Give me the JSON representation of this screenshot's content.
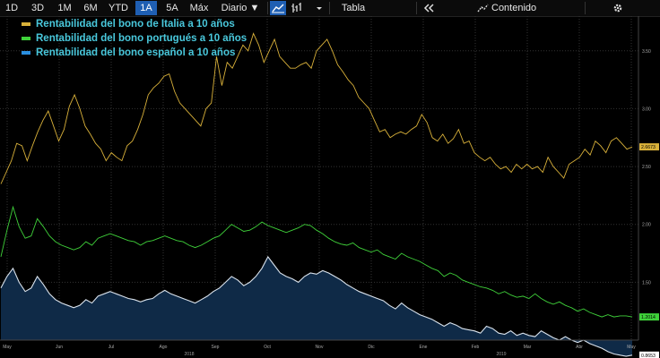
{
  "toolbar": {
    "ranges": [
      "1D",
      "3D",
      "1M",
      "6M",
      "YTD",
      "1A",
      "5A",
      "Máx"
    ],
    "active_range": "1A",
    "interval_label": "Diario ▼",
    "table_label": "Tabla",
    "contents_label": "Contenido",
    "icons": [
      "line-chart-icon",
      "bar-chart-icon",
      "settings-icon"
    ]
  },
  "colors": {
    "italy": "#d9b13a",
    "portugal": "#3fd13a",
    "spain_line": "#d9e2ec",
    "spain_fill": "#0f2a47",
    "legend_text": "#49c8dc"
  },
  "chart_data": {
    "type": "line",
    "ylim": [
      1.0,
      3.8
    ],
    "yticks": [
      "1.50",
      "2.00",
      "2.50",
      "3.00",
      "3.50"
    ],
    "ytick_values": [
      1.5,
      2.0,
      2.5,
      3.0,
      3.5
    ],
    "x_month_labels": [
      "May",
      "Jun",
      "Jul",
      "Ago",
      "Sep",
      "Oct",
      "Nov",
      "Dic",
      "Ene",
      "Feb",
      "Mar",
      "Abr",
      "May"
    ],
    "x_year_labels": [
      "2018",
      "2019"
    ],
    "last_value_labels": [
      "2.6673",
      "1.2014",
      "0.8653"
    ],
    "grid": true,
    "legend_position": "top-left",
    "series": [
      {
        "name": "Rentabilidad del bono de Italia a 10 años",
        "color": "#d9b13a",
        "values": [
          2.35,
          2.45,
          2.55,
          2.7,
          2.68,
          2.55,
          2.68,
          2.8,
          2.9,
          2.98,
          2.85,
          2.72,
          2.82,
          3.02,
          3.12,
          3.0,
          2.85,
          2.78,
          2.7,
          2.65,
          2.55,
          2.62,
          2.58,
          2.55,
          2.68,
          2.72,
          2.82,
          2.95,
          3.12,
          3.18,
          3.22,
          3.28,
          3.3,
          3.15,
          3.05,
          3.0,
          2.95,
          2.9,
          2.85,
          3.0,
          3.05,
          3.45,
          3.2,
          3.4,
          3.35,
          3.45,
          3.55,
          3.5,
          3.65,
          3.55,
          3.4,
          3.5,
          3.6,
          3.45,
          3.4,
          3.35,
          3.35,
          3.38,
          3.4,
          3.35,
          3.5,
          3.55,
          3.6,
          3.5,
          3.38,
          3.32,
          3.25,
          3.2,
          3.1,
          3.05,
          3.0,
          2.9,
          2.8,
          2.82,
          2.75,
          2.78,
          2.8,
          2.78,
          2.82,
          2.85,
          2.95,
          2.88,
          2.75,
          2.72,
          2.78,
          2.7,
          2.74,
          2.82,
          2.7,
          2.72,
          2.62,
          2.58,
          2.55,
          2.58,
          2.52,
          2.48,
          2.5,
          2.45,
          2.52,
          2.48,
          2.52,
          2.48,
          2.5,
          2.45,
          2.58,
          2.5,
          2.45,
          2.4,
          2.52,
          2.55,
          2.58,
          2.65,
          2.6,
          2.72,
          2.68,
          2.62,
          2.72,
          2.75,
          2.7,
          2.65,
          2.67
        ]
      },
      {
        "name": "Rentabilidad del bono portugués a 10 años",
        "color": "#3fd13a",
        "values": [
          1.72,
          1.95,
          2.15,
          1.98,
          1.88,
          1.9,
          2.05,
          1.98,
          1.9,
          1.85,
          1.82,
          1.8,
          1.78,
          1.8,
          1.85,
          1.82,
          1.88,
          1.9,
          1.92,
          1.9,
          1.88,
          1.86,
          1.85,
          1.82,
          1.85,
          1.86,
          1.88,
          1.9,
          1.88,
          1.86,
          1.85,
          1.82,
          1.8,
          1.82,
          1.85,
          1.88,
          1.9,
          1.95,
          2.0,
          1.97,
          1.94,
          1.95,
          1.98,
          2.02,
          1.99,
          1.97,
          1.95,
          1.93,
          1.95,
          1.97,
          2.0,
          1.99,
          1.95,
          1.92,
          1.88,
          1.85,
          1.83,
          1.82,
          1.84,
          1.8,
          1.78,
          1.76,
          1.78,
          1.74,
          1.72,
          1.7,
          1.75,
          1.72,
          1.7,
          1.68,
          1.65,
          1.62,
          1.6,
          1.55,
          1.58,
          1.56,
          1.52,
          1.5,
          1.48,
          1.46,
          1.45,
          1.43,
          1.4,
          1.42,
          1.39,
          1.37,
          1.38,
          1.36,
          1.4,
          1.36,
          1.33,
          1.31,
          1.33,
          1.3,
          1.28,
          1.25,
          1.27,
          1.24,
          1.22,
          1.2,
          1.22,
          1.2,
          1.21,
          1.21,
          1.2
        ]
      },
      {
        "name": "Rentabilidad del bono español a 10 años",
        "color": "#d9e2ec",
        "values": [
          1.45,
          1.55,
          1.62,
          1.5,
          1.42,
          1.45,
          1.55,
          1.48,
          1.4,
          1.35,
          1.32,
          1.3,
          1.28,
          1.3,
          1.35,
          1.32,
          1.38,
          1.4,
          1.42,
          1.4,
          1.38,
          1.36,
          1.35,
          1.33,
          1.35,
          1.36,
          1.4,
          1.43,
          1.4,
          1.38,
          1.36,
          1.34,
          1.32,
          1.35,
          1.38,
          1.42,
          1.45,
          1.5,
          1.55,
          1.52,
          1.47,
          1.5,
          1.55,
          1.62,
          1.72,
          1.65,
          1.58,
          1.55,
          1.53,
          1.5,
          1.55,
          1.58,
          1.57,
          1.6,
          1.58,
          1.55,
          1.52,
          1.48,
          1.45,
          1.42,
          1.4,
          1.38,
          1.36,
          1.34,
          1.3,
          1.27,
          1.32,
          1.28,
          1.25,
          1.22,
          1.2,
          1.18,
          1.15,
          1.12,
          1.15,
          1.13,
          1.1,
          1.09,
          1.08,
          1.06,
          1.12,
          1.1,
          1.06,
          1.05,
          1.08,
          1.04,
          1.06,
          1.04,
          1.03,
          1.08,
          1.05,
          1.02,
          1.0,
          1.03,
          1.0,
          0.98,
          1.0,
          0.97,
          0.95,
          0.93,
          0.9,
          0.88,
          0.87,
          0.86,
          0.87
        ]
      }
    ]
  }
}
